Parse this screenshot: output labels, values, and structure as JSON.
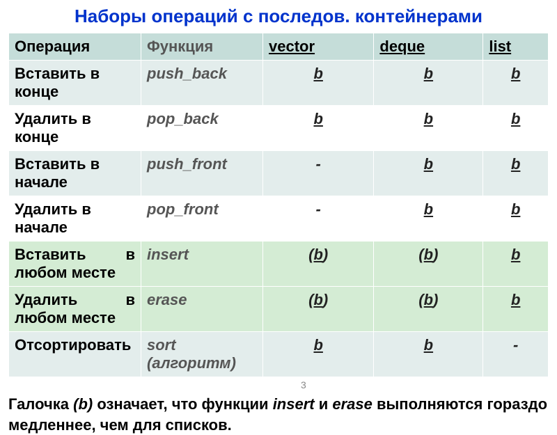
{
  "title": "Наборы операций с последов. контейнерами",
  "headers": {
    "op": "Операция",
    "func": "Функция",
    "vector": "vector",
    "deque": "deque",
    "list": "list"
  },
  "rows": [
    {
      "op": "Вставить в конце",
      "func": "push_back",
      "vector": "b",
      "deque": "b",
      "list": "b",
      "vectorParen": false,
      "dequeParen": false,
      "style": "odd"
    },
    {
      "op": "Удалить в конце",
      "func": "pop_back",
      "vector": "b",
      "deque": "b",
      "list": "b",
      "vectorParen": false,
      "dequeParen": false,
      "style": "even"
    },
    {
      "op": "Вставить в начале",
      "func": "push_front",
      "vector": "-",
      "deque": "b",
      "list": "b",
      "vectorParen": false,
      "dequeParen": false,
      "style": "odd"
    },
    {
      "op": "Удалить в начале",
      "func": "pop_front",
      "vector": "-",
      "deque": "b",
      "list": "b",
      "vectorParen": false,
      "dequeParen": false,
      "style": "even"
    },
    {
      "op": "Вставить в любом месте",
      "func": "insert",
      "vector": "b",
      "deque": "b",
      "list": "b",
      "vectorParen": true,
      "dequeParen": true,
      "style": "green",
      "justify": true
    },
    {
      "op": "Удалить в любом месте",
      "func": "erase",
      "vector": "b",
      "deque": "b",
      "list": "b",
      "vectorParen": true,
      "dequeParen": true,
      "style": "green",
      "justify": true
    },
    {
      "op": "Отсортировать",
      "func": "sort (алгоритм)",
      "vector": "b",
      "deque": "b",
      "list": "-",
      "vectorParen": false,
      "dequeParen": false,
      "style": "odd"
    }
  ],
  "footer": {
    "part1": "Галочка ",
    "mark": "(b)",
    "part2": " означает, что функции ",
    "func1": "insert",
    "part3": " и ",
    "func2": "erase",
    "part4": " выполняются гораздо медленнее, чем для списков."
  },
  "pageNumber": "3",
  "colors": {
    "title": "#0033cc",
    "headerBg": "#c5ddd9",
    "rowOdd": "#e3edec",
    "rowEven": "#ffffff",
    "rowGreen": "#d4ecd4",
    "background": "#ffffff"
  }
}
